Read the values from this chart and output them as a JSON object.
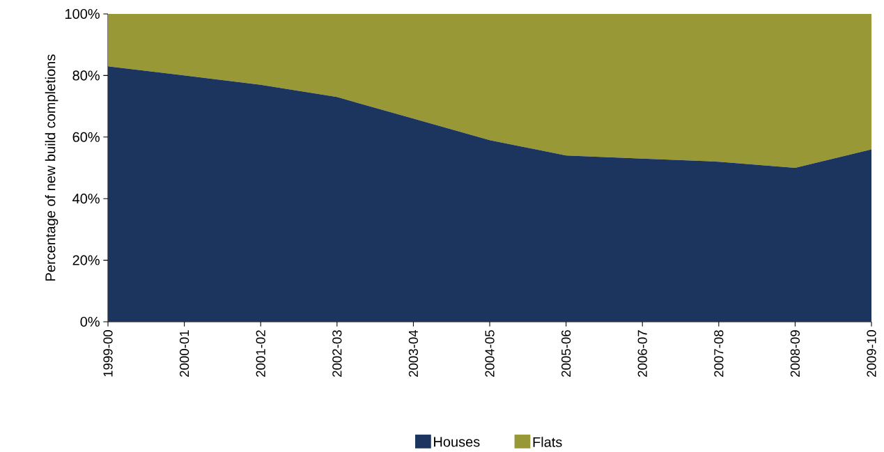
{
  "chart_data": {
    "type": "area",
    "stacked": true,
    "ylabel": "Percentage of new build completions",
    "categories": [
      "1999-00",
      "2000-01",
      "2001-02",
      "2002-03",
      "2003-04",
      "2004-05",
      "2005-06",
      "2006-07",
      "2007-08",
      "2008-09",
      "2009-10"
    ],
    "series": [
      {
        "name": "Houses",
        "color": "#1c355e",
        "values": [
          83,
          80,
          77,
          73,
          66,
          59,
          54,
          53,
          52,
          50,
          56
        ]
      },
      {
        "name": "Flats",
        "color": "#999836",
        "values": [
          17,
          20,
          23,
          27,
          34,
          41,
          46,
          47,
          48,
          50,
          44
        ]
      }
    ],
    "ylim": [
      0,
      100
    ],
    "yticks": [
      {
        "value": 0,
        "label": "0%"
      },
      {
        "value": 20,
        "label": "20%"
      },
      {
        "value": 40,
        "label": "40%"
      },
      {
        "value": 60,
        "label": "60%"
      },
      {
        "value": 80,
        "label": "80%"
      },
      {
        "value": 100,
        "label": "100%"
      }
    ],
    "legend": "bottom",
    "grid": false
  }
}
